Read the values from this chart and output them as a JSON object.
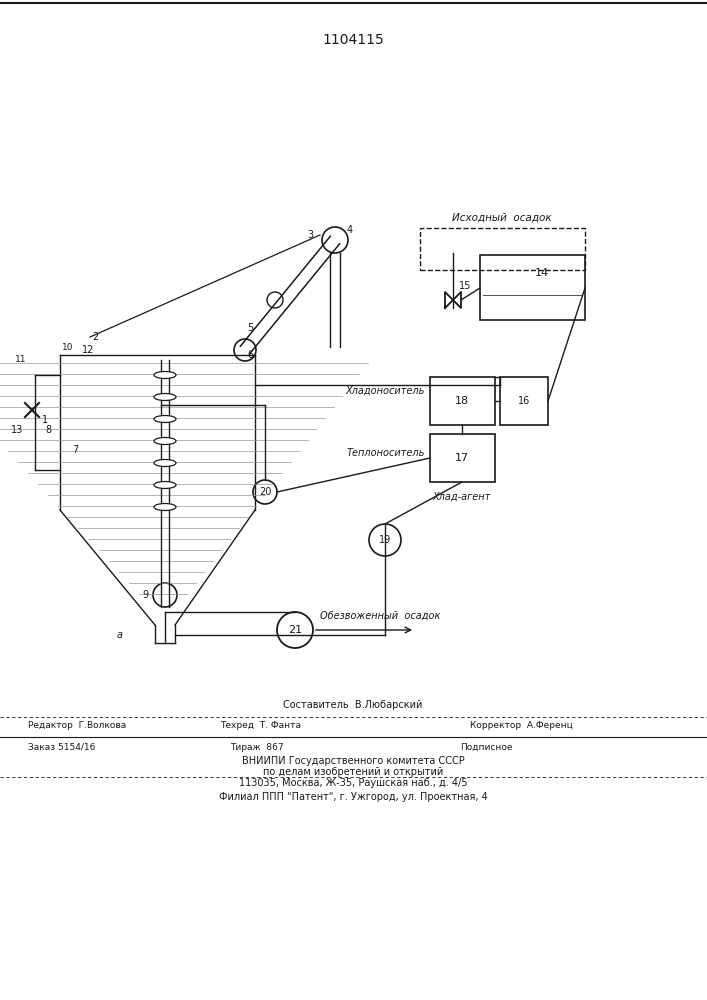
{
  "patent_number": "1104115",
  "bg_color": "#ffffff",
  "line_color": "#1a1a1a",
  "footer": {
    "line1": "Составитель  В.Любарский",
    "line2_left": "Редактор  Г.Волкова",
    "line2_mid": "Техред  Т. Фанта",
    "line2_right": "Корректор  А.Ференц",
    "line3_left": "Заказ 5154/16",
    "line3_mid": "Тираж  867",
    "line3_right": "Подписное",
    "line4": "ВНИИПИ Государственного комитета СССР",
    "line5": "по делам изобретений и открытий",
    "line6": "113035, Москва, Ж-35, Раушская наб., д. 4/5",
    "line7": "Филиал ППП \"Патент\", г. Ужгород, ул. Проектная, 4"
  },
  "labels": {
    "ishodny": "Исходный  осадок",
    "khladoNos": "Хладоноситель",
    "teploNos": "Теплоноситель",
    "khladAgent": "Хлад-агент",
    "obezv": "Обезвоженный  осадок"
  }
}
